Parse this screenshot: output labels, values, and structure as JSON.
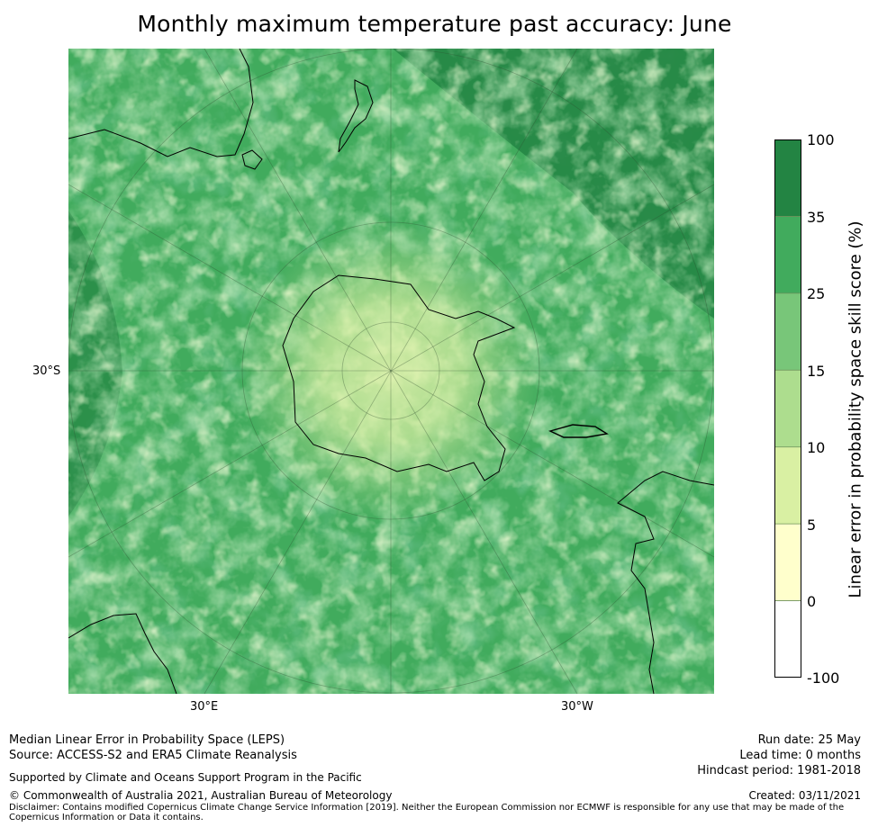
{
  "title": "Monthly maximum temperature past accuracy: June",
  "map": {
    "projection": "south-polar-stereographic",
    "graticule_labels": {
      "left": "30°S",
      "bottom_left": "30°E",
      "bottom_right": "30°W"
    }
  },
  "colorbar": {
    "label": "Linear error in probability space skill score (%)",
    "ticks": [
      "100",
      "35",
      "25",
      "15",
      "10",
      "5",
      "0",
      "-100"
    ],
    "bins": [
      {
        "range": "35 to 100",
        "color": "#238443"
      },
      {
        "range": "25 to 35",
        "color": "#41ab5d"
      },
      {
        "range": "15 to 25",
        "color": "#78c679"
      },
      {
        "range": "10 to 15",
        "color": "#addd8e"
      },
      {
        "range": "5 to 10",
        "color": "#d9f0a3"
      },
      {
        "range": "0 to 5",
        "color": "#ffffcc"
      },
      {
        "range": "-100 to 0",
        "color": "#ffffff"
      }
    ]
  },
  "footer": {
    "left": {
      "line1": "Median Linear Error in Probability Space (LEPS)",
      "line2": "Source: ACCESS-S2 and ERA5 Climate Reanalysis",
      "support": "Supported by Climate and Oceans Support Program in the Pacific",
      "copyright": "© Commonwealth of Australia 2021, Australian Bureau of Meteorology",
      "disclaimer": "Disclaimer: Contains modified Copernicus Climate Change Service Information [2019]. Neither the European Commission nor ECMWF is responsible for any use that may be made of the Copernicus Information or Data it contains."
    },
    "right": {
      "run_date": "Run date: 25 May",
      "lead_time": "Lead time: 0 months",
      "hindcast": "Hindcast period: 1981-2018",
      "created": "Created: 03/11/2021"
    }
  }
}
